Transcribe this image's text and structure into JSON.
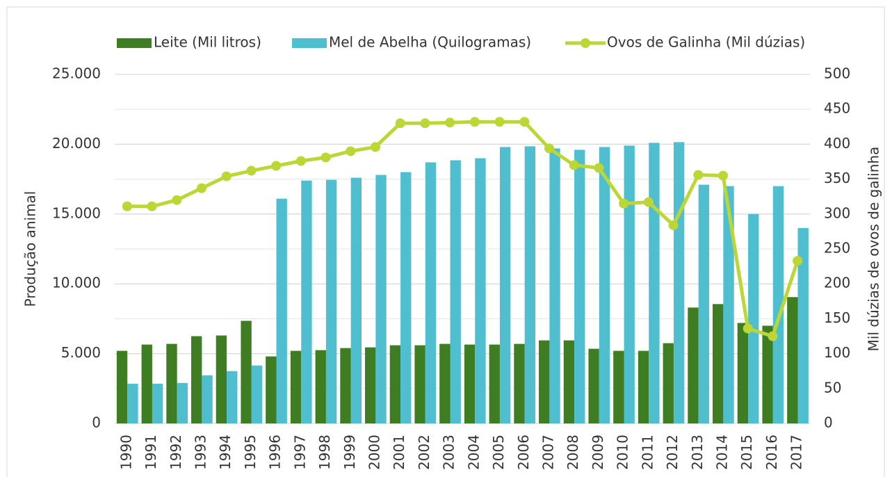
{
  "chart_data": {
    "type": "bar_line",
    "categories": [
      "1990",
      "1991",
      "1992",
      "1993",
      "1994",
      "1995",
      "1996",
      "1997",
      "1998",
      "1999",
      "2000",
      "2001",
      "2002",
      "2003",
      "2004",
      "2005",
      "2006",
      "2007",
      "2008",
      "2009",
      "2010",
      "2011",
      "2012",
      "2013",
      "2014",
      "2015",
      "2016",
      "2017"
    ],
    "series": [
      {
        "name": "Leite (Mil litros)",
        "color": "#3f7d22",
        "values": [
          5200,
          5650,
          5700,
          6250,
          6300,
          7350,
          4800,
          5200,
          5250,
          5400,
          5450,
          5600,
          5600,
          5700,
          5650,
          5650,
          5700,
          5950,
          5950,
          5350,
          5200,
          5200,
          5750,
          8300,
          8550,
          7200,
          7000,
          9050
        ]
      },
      {
        "name": "Mel de Abelha (Quilogramas)",
        "color": "#4fbfd0",
        "values": [
          2850,
          2850,
          2900,
          3450,
          3750,
          4150,
          16100,
          17400,
          17450,
          17600,
          17800,
          18000,
          18700,
          18850,
          19000,
          19800,
          19850,
          19700,
          19600,
          19800,
          19900,
          20100,
          20150,
          17100,
          17000,
          15000,
          17000,
          14000
        ]
      },
      {
        "name": "Ovos de Galinha (Mil dúzias)",
        "color": "#bcd636",
        "axis": "y2",
        "type": "line",
        "values": [
          311,
          311,
          320,
          337,
          354,
          362,
          369,
          376,
          381,
          390,
          396,
          430,
          430,
          431,
          432,
          432,
          432,
          394,
          370,
          366,
          315,
          317,
          284,
          356,
          355,
          136,
          125,
          233
        ]
      }
    ],
    "ylabel": "Produção animal",
    "y2label": "Mil dúzias de ovos de galinha",
    "ylim": [
      0,
      25000
    ],
    "yticks": [
      {
        "value": 0,
        "label": "0"
      },
      {
        "value": 5000,
        "label": "5.000"
      },
      {
        "value": 10000,
        "label": "10.000"
      },
      {
        "value": 15000,
        "label": "15.000"
      },
      {
        "value": 20000,
        "label": "20.000"
      },
      {
        "value": 25000,
        "label": "25.000"
      }
    ],
    "y2lim": [
      0,
      500
    ],
    "y2ticks": [
      0,
      50,
      100,
      150,
      200,
      250,
      300,
      350,
      400,
      450,
      500
    ],
    "grid": true,
    "legend": "top"
  }
}
